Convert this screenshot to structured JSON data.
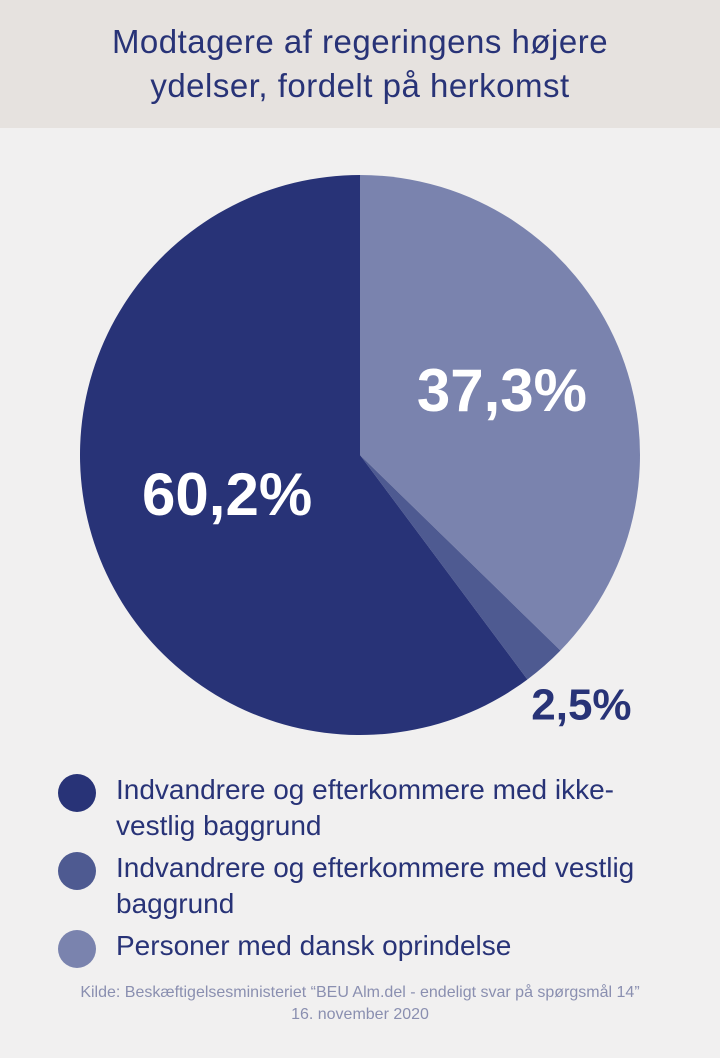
{
  "chart_data": {
    "type": "pie",
    "title": "Modtagere af regeringens højere ydelser, fordelt på herkomst",
    "categories": [
      "Indvandrere og efterkommere med ikke-vestlig baggrund",
      "Indvandrere og efterkommere med vestlig baggrund",
      "Personer med dansk oprindelse"
    ],
    "values": [
      60.2,
      2.5,
      37.3
    ],
    "value_labels": [
      "60,2%",
      "2,5%",
      "37,3%"
    ],
    "colors": [
      "#283377",
      "#4e5a91",
      "#7a83ae"
    ],
    "source": [
      "Kilde: Beskæftigelsesministeriet “BEU Alm.del - endeligt svar på spørgsmål 14”",
      "16. november 2020"
    ]
  }
}
